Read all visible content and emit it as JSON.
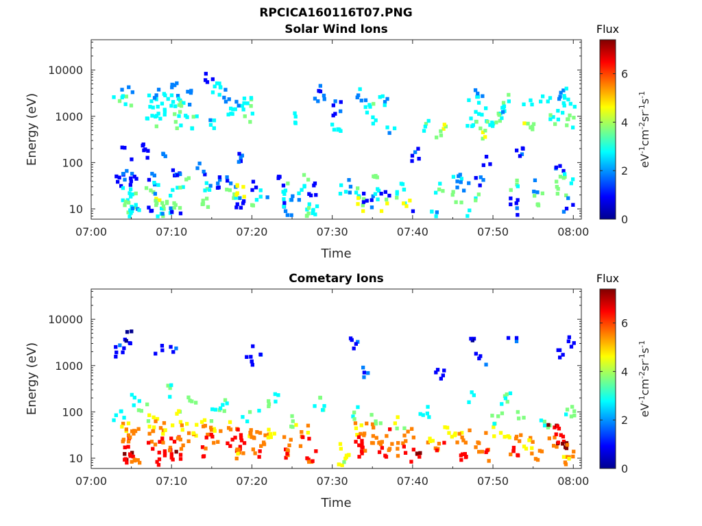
{
  "figure": {
    "title_line1": "RPCICA160116T07.PNG"
  },
  "colorscale": [
    "#00008f",
    "#0000ff",
    "#0080ff",
    "#00ffff",
    "#80ff80",
    "#ffff00",
    "#ff8000",
    "#ff0000",
    "#800000"
  ],
  "chart_data": [
    {
      "type": "heatmap",
      "title": "Solar Wind Ions",
      "xlabel": "Time",
      "ylabel": "Energy (eV)",
      "y_scale": "log",
      "xlim": [
        "07:00",
        "08:01"
      ],
      "ylim": [
        6,
        45000
      ],
      "x_ticks": [
        "07:00",
        "07:10",
        "07:20",
        "07:30",
        "07:40",
        "07:50",
        "08:00"
      ],
      "y_ticks": [
        10,
        100,
        1000,
        10000
      ],
      "y_tick_labels": [
        "10",
        "100",
        "1000",
        "10000"
      ],
      "colorbar": {
        "label": "Flux",
        "units": "eV-1cm-2sr-1s-1",
        "range": [
          0,
          7.4
        ],
        "ticks": [
          0,
          2,
          4,
          6
        ]
      },
      "points": [
        [
          "07:03",
          2300,
          3.0
        ],
        [
          "07:03",
          40,
          1.2
        ],
        [
          "07:04",
          4000,
          2.5
        ],
        [
          "07:04",
          2000,
          3.2
        ],
        [
          "07:04",
          150,
          1.0
        ],
        [
          "07:04",
          50,
          1.5
        ],
        [
          "07:04",
          20,
          3.0
        ],
        [
          "07:04",
          12,
          3.5
        ],
        [
          "07:04",
          8,
          2.8
        ],
        [
          "07:05",
          35,
          1.0
        ],
        [
          "07:05",
          15,
          3.2
        ],
        [
          "07:05",
          9,
          2.5
        ],
        [
          "07:06",
          170,
          1.0
        ],
        [
          "07:07",
          2000,
          2.5
        ],
        [
          "07:07",
          800,
          3.0
        ],
        [
          "07:07",
          40,
          1.5
        ],
        [
          "07:07",
          20,
          3.5
        ],
        [
          "07:07",
          8,
          1.3
        ],
        [
          "07:08",
          3000,
          2.2
        ],
        [
          "07:08",
          1200,
          2.8
        ],
        [
          "07:08",
          30,
          2.5
        ],
        [
          "07:08",
          12,
          4.0
        ],
        [
          "07:08",
          7,
          3.0
        ],
        [
          "07:09",
          2400,
          2.8
        ],
        [
          "07:09",
          120,
          1.5
        ],
        [
          "07:09",
          15,
          3.5
        ],
        [
          "07:09",
          8,
          2.5
        ],
        [
          "07:10",
          4000,
          1.8
        ],
        [
          "07:10",
          2000,
          2.8
        ],
        [
          "07:10",
          800,
          3.2
        ],
        [
          "07:10",
          50,
          1.2
        ],
        [
          "07:10",
          25,
          2.0
        ],
        [
          "07:10",
          12,
          3.8
        ],
        [
          "07:10",
          7,
          1.2
        ],
        [
          "07:11",
          1500,
          3.0
        ],
        [
          "07:11",
          40,
          3.5
        ],
        [
          "07:12",
          2500,
          2.2
        ],
        [
          "07:12",
          700,
          3.0
        ],
        [
          "07:13",
          80,
          1.2
        ],
        [
          "07:14",
          30,
          3.0
        ],
        [
          "07:14",
          15,
          3.6
        ],
        [
          "07:14",
          6000,
          1.0
        ],
        [
          "07:15",
          40,
          1.5
        ],
        [
          "07:15",
          4000,
          2.8
        ],
        [
          "07:15",
          800,
          2.5
        ],
        [
          "07:16",
          3000,
          2.0
        ],
        [
          "07:17",
          40,
          1.5
        ],
        [
          "07:17",
          20,
          3.5
        ],
        [
          "07:17",
          1200,
          2.8
        ],
        [
          "07:18",
          150,
          1.2
        ],
        [
          "07:18",
          25,
          4.5
        ],
        [
          "07:18",
          12,
          1.0
        ],
        [
          "07:18",
          2000,
          2.5
        ],
        [
          "07:19",
          2000,
          3.0
        ],
        [
          "07:19",
          1000,
          3.5
        ],
        [
          "07:20",
          30,
          1.5
        ],
        [
          "07:20",
          15,
          3.5
        ],
        [
          "07:21",
          20,
          2.5
        ],
        [
          "07:23",
          35,
          1.0
        ],
        [
          "07:24",
          30,
          3.0
        ],
        [
          "07:24",
          15,
          2.5
        ],
        [
          "07:24",
          10,
          1.2
        ],
        [
          "07:25",
          800,
          2.8
        ],
        [
          "07:26",
          40,
          3.5
        ],
        [
          "07:26",
          20,
          2.5
        ],
        [
          "07:26",
          10,
          3.5
        ],
        [
          "07:27",
          25,
          1.0
        ],
        [
          "07:27",
          8,
          2.8
        ],
        [
          "07:28",
          2000,
          2.0
        ],
        [
          "07:28",
          4000,
          1.5
        ],
        [
          "07:30",
          1500,
          1.0
        ],
        [
          "07:30",
          600,
          2.5
        ],
        [
          "07:31",
          30,
          3.0
        ],
        [
          "07:32",
          30,
          2.0
        ],
        [
          "07:33",
          25,
          3.5
        ],
        [
          "07:33",
          12,
          4.0
        ],
        [
          "07:33",
          3000,
          2.0
        ],
        [
          "07:34",
          1500,
          3.0
        ],
        [
          "07:34",
          15,
          1.0
        ],
        [
          "07:35",
          800,
          2.5
        ],
        [
          "07:35",
          40,
          3.5
        ],
        [
          "07:35",
          20,
          2.8
        ],
        [
          "07:36",
          25,
          1.0
        ],
        [
          "07:36",
          12,
          3.8
        ],
        [
          "07:36",
          2000,
          2.5
        ],
        [
          "07:37",
          400,
          2.5
        ],
        [
          "07:38",
          30,
          3.0
        ],
        [
          "07:38",
          15,
          3.5
        ],
        [
          "07:39",
          15,
          4.5
        ],
        [
          "07:40",
          150,
          1.0
        ],
        [
          "07:40",
          8,
          1.0
        ],
        [
          "07:41",
          600,
          3.0
        ],
        [
          "07:42",
          8,
          2.5
        ],
        [
          "07:43",
          500,
          4.0
        ],
        [
          "07:43",
          30,
          3.0
        ],
        [
          "07:45",
          40,
          2.5
        ],
        [
          "07:45",
          20,
          3.5
        ],
        [
          "07:46",
          30,
          1.5
        ],
        [
          "07:46",
          8,
          2.8
        ],
        [
          "07:47",
          2000,
          2.8
        ],
        [
          "07:47",
          800,
          3.0
        ],
        [
          "07:48",
          3500,
          1.5
        ],
        [
          "07:48",
          1500,
          2.5
        ],
        [
          "07:48",
          400,
          4.0
        ],
        [
          "07:48",
          40,
          1.2
        ],
        [
          "07:48",
          20,
          3.0
        ],
        [
          "07:49",
          600,
          3.0
        ],
        [
          "07:49",
          100,
          1.0
        ],
        [
          "07:50",
          800,
          3.5
        ],
        [
          "07:51",
          2000,
          3.0
        ],
        [
          "07:51",
          1500,
          2.5
        ],
        [
          "07:52",
          30,
          3.5
        ],
        [
          "07:52",
          15,
          1.2
        ],
        [
          "07:52",
          8,
          1.0
        ],
        [
          "07:53",
          150,
          1.0
        ],
        [
          "07:54",
          600,
          4.0
        ],
        [
          "07:54",
          2000,
          2.5
        ],
        [
          "07:55",
          30,
          1.5
        ],
        [
          "07:55",
          15,
          3.5
        ],
        [
          "07:56",
          2200,
          2.5
        ],
        [
          "07:57",
          800,
          3.5
        ],
        [
          "07:58",
          3000,
          2.2
        ],
        [
          "07:58",
          1500,
          3.0
        ],
        [
          "07:58",
          40,
          3.5
        ],
        [
          "07:58",
          20,
          4.0
        ],
        [
          "07:58",
          80,
          1.2
        ],
        [
          "07:59",
          2000,
          2.8
        ],
        [
          "07:59",
          800,
          3.5
        ],
        [
          "07:59",
          40,
          2.5
        ],
        [
          "07:59",
          12,
          1.2
        ]
      ]
    },
    {
      "type": "heatmap",
      "title": "Cometary Ions",
      "xlabel": "Time",
      "ylabel": "Energy (eV)",
      "y_scale": "log",
      "xlim": [
        "07:00",
        "08:01"
      ],
      "ylim": [
        6,
        45000
      ],
      "x_ticks": [
        "07:00",
        "07:10",
        "07:20",
        "07:30",
        "07:40",
        "07:50",
        "08:00"
      ],
      "y_ticks": [
        10,
        100,
        1000,
        10000
      ],
      "y_tick_labels": [
        "10",
        "100",
        "1000",
        "10000"
      ],
      "colorbar": {
        "label": "Flux",
        "units": "eV-1cm-2sr-1s-1",
        "range": [
          0,
          7.4
        ],
        "ticks": [
          0,
          2,
          4,
          6
        ]
      },
      "points": [
        [
          "07:03",
          2000,
          1.0
        ],
        [
          "07:03",
          80,
          3.0
        ],
        [
          "07:04",
          4000,
          0.8
        ],
        [
          "07:04",
          40,
          5.0
        ],
        [
          "07:04",
          20,
          6.0
        ],
        [
          "07:04",
          12,
          6.8
        ],
        [
          "07:04",
          8,
          6.5
        ],
        [
          "07:05",
          200,
          2.5
        ],
        [
          "07:05",
          30,
          5.5
        ],
        [
          "07:05",
          15,
          6.8
        ],
        [
          "07:05",
          8,
          5.5
        ],
        [
          "07:06",
          100,
          3.5
        ],
        [
          "07:07",
          60,
          4.5
        ],
        [
          "07:07",
          30,
          5.5
        ],
        [
          "07:07",
          15,
          6.2
        ],
        [
          "07:08",
          50,
          5.5
        ],
        [
          "07:08",
          20,
          6.5
        ],
        [
          "07:08",
          10,
          6.8
        ],
        [
          "07:08",
          2000,
          1.0
        ],
        [
          "07:09",
          300,
          3.0
        ],
        [
          "07:09",
          40,
          4.5
        ],
        [
          "07:09",
          15,
          6.0
        ],
        [
          "07:10",
          2000,
          1.0
        ],
        [
          "07:10",
          80,
          4.0
        ],
        [
          "07:10",
          30,
          6.0
        ],
        [
          "07:10",
          12,
          6.8
        ],
        [
          "07:10",
          8,
          6.5
        ],
        [
          "07:11",
          50,
          5.0
        ],
        [
          "07:11",
          20,
          5.5
        ],
        [
          "07:12",
          150,
          3.5
        ],
        [
          "07:12",
          30,
          5.0
        ],
        [
          "07:13",
          60,
          4.0
        ],
        [
          "07:14",
          40,
          5.5
        ],
        [
          "07:14",
          25,
          6.5
        ],
        [
          "07:14",
          15,
          6.0
        ],
        [
          "07:15",
          30,
          5.0
        ],
        [
          "07:15",
          80,
          3.5
        ],
        [
          "07:16",
          150,
          3.0
        ],
        [
          "07:17",
          50,
          5.0
        ],
        [
          "07:17",
          25,
          6.5
        ],
        [
          "07:18",
          30,
          6.8
        ],
        [
          "07:18",
          20,
          6.5
        ],
        [
          "07:18",
          12,
          5.5
        ],
        [
          "07:19",
          1500,
          1.0
        ],
        [
          "07:19",
          80,
          3.0
        ],
        [
          "07:19",
          40,
          5.0
        ],
        [
          "07:20",
          2000,
          1.0
        ],
        [
          "07:20",
          30,
          5.5
        ],
        [
          "07:20",
          15,
          6.0
        ],
        [
          "07:21",
          25,
          5.0
        ],
        [
          "07:21",
          120,
          3.0
        ],
        [
          "07:22",
          40,
          4.5
        ],
        [
          "07:23",
          200,
          3.0
        ],
        [
          "07:24",
          25,
          5.5
        ],
        [
          "07:24",
          12,
          6.2
        ],
        [
          "07:25",
          60,
          4.0
        ],
        [
          "07:26",
          40,
          5.0
        ],
        [
          "07:26",
          20,
          6.0
        ],
        [
          "07:27",
          12,
          6.5
        ],
        [
          "07:27",
          8,
          6.0
        ],
        [
          "07:28",
          150,
          3.0
        ],
        [
          "07:31",
          8,
          4.0
        ],
        [
          "07:31",
          15,
          4.5
        ],
        [
          "07:32",
          3000,
          1.0
        ],
        [
          "07:32",
          100,
          3.0
        ],
        [
          "07:33",
          40,
          5.0
        ],
        [
          "07:33",
          20,
          6.5
        ],
        [
          "07:33",
          12,
          6.0
        ],
        [
          "07:34",
          800,
          1.5
        ],
        [
          "07:34",
          40,
          5.5
        ],
        [
          "07:35",
          25,
          5.5
        ],
        [
          "07:35",
          80,
          3.5
        ],
        [
          "07:36",
          30,
          6.0
        ],
        [
          "07:36",
          15,
          6.5
        ],
        [
          "07:37",
          15,
          5.5
        ],
        [
          "07:38",
          60,
          4.0
        ],
        [
          "07:38",
          20,
          5.5
        ],
        [
          "07:39",
          30,
          5.5
        ],
        [
          "07:39",
          15,
          6.5
        ],
        [
          "07:40",
          10,
          6.8
        ],
        [
          "07:40",
          8,
          6.5
        ],
        [
          "07:41",
          100,
          3.0
        ],
        [
          "07:42",
          20,
          5.0
        ],
        [
          "07:43",
          600,
          0.8
        ],
        [
          "07:43",
          15,
          6.0
        ],
        [
          "07:44",
          40,
          4.5
        ],
        [
          "07:45",
          25,
          5.0
        ],
        [
          "07:46",
          12,
          6.5
        ],
        [
          "07:46",
          30,
          5.5
        ],
        [
          "07:47",
          5000,
          0.8
        ],
        [
          "07:47",
          200,
          3.0
        ],
        [
          "07:48",
          20,
          5.5
        ],
        [
          "07:48",
          1500,
          1.0
        ],
        [
          "07:49",
          40,
          5.0
        ],
        [
          "07:49",
          12,
          6.0
        ],
        [
          "07:50",
          80,
          3.5
        ],
        [
          "07:51",
          200,
          3.0
        ],
        [
          "07:51",
          40,
          4.5
        ],
        [
          "07:52",
          3000,
          1.0
        ],
        [
          "07:52",
          15,
          6.0
        ],
        [
          "07:53",
          30,
          5.5
        ],
        [
          "07:53",
          100,
          3.5
        ],
        [
          "07:54",
          20,
          5.0
        ],
        [
          "07:55",
          12,
          5.5
        ],
        [
          "07:56",
          60,
          3.5
        ],
        [
          "07:57",
          40,
          7.0
        ],
        [
          "07:57",
          20,
          5.5
        ],
        [
          "07:58",
          1500,
          1.0
        ],
        [
          "07:58",
          30,
          6.5
        ],
        [
          "07:58",
          20,
          6.8
        ],
        [
          "07:59",
          3000,
          1.0
        ],
        [
          "07:59",
          100,
          3.5
        ],
        [
          "07:59",
          15,
          5.5
        ],
        [
          "07:59",
          8,
          5.0
        ]
      ]
    }
  ]
}
